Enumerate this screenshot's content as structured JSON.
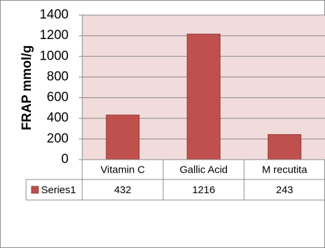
{
  "chart_data": {
    "type": "bar",
    "y_label": "FRAP mmol/g",
    "categories": [
      "Vitamin C",
      "Gallic Acid",
      "M recutita"
    ],
    "series": [
      {
        "name": "Series1",
        "color": "#c0504d",
        "values": [
          432,
          1216,
          243
        ]
      }
    ],
    "ylim": [
      0,
      1400
    ],
    "yticks": [
      0,
      200,
      400,
      600,
      800,
      1000,
      1200,
      1400
    ],
    "grid": true,
    "plot_background": "#f2dcdb",
    "data_table": true
  }
}
